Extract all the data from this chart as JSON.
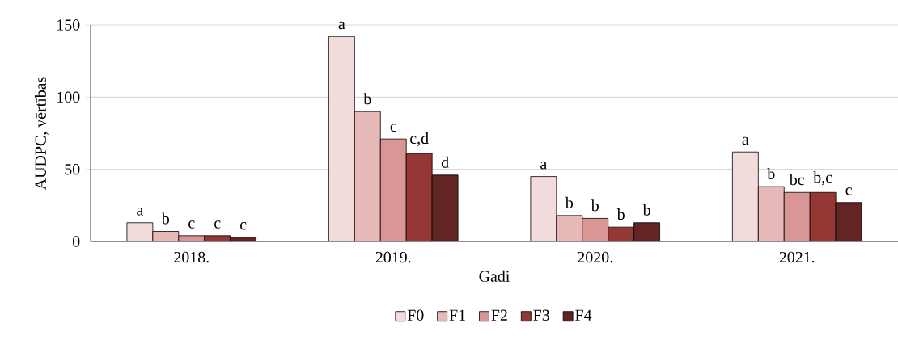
{
  "chart_data": {
    "type": "bar",
    "xlabel": "Gadi",
    "ylabel": "AUDPC, vērtības",
    "categories": [
      "2018.",
      "2019.",
      "2020.",
      "2021."
    ],
    "series": [
      {
        "name": "F0",
        "color": "#f2dcdb",
        "values": [
          13,
          142,
          45,
          62
        ],
        "value_labels": [
          "a",
          "a",
          "a",
          "a"
        ]
      },
      {
        "name": "F1",
        "color": "#e6b9b8",
        "values": [
          7,
          90,
          18,
          38
        ],
        "value_labels": [
          "b",
          "b",
          "b",
          "b"
        ]
      },
      {
        "name": "F2",
        "color": "#d99694",
        "values": [
          4,
          71,
          16,
          34
        ],
        "value_labels": [
          "c",
          "c",
          "b",
          "bc"
        ]
      },
      {
        "name": "F3",
        "color": "#953735",
        "values": [
          4,
          61,
          10,
          34
        ],
        "value_labels": [
          "c",
          "c,d",
          "b",
          "b,c"
        ]
      },
      {
        "name": "F4",
        "color": "#632523",
        "values": [
          3,
          46,
          13,
          27
        ],
        "value_labels": [
          "c",
          "d",
          "b",
          "c"
        ]
      }
    ],
    "ylim": [
      0,
      150
    ],
    "yticks": [
      0,
      50,
      100,
      150
    ],
    "grid": "y",
    "legend": "bottom"
  }
}
